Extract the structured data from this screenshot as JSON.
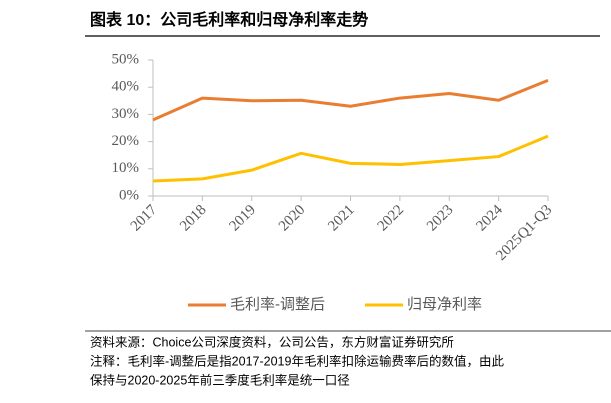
{
  "chart_data": {
    "type": "line",
    "title": "图表 10：公司毛利率和归母净利率走势",
    "categories": [
      "2017",
      "2018",
      "2019",
      "2020",
      "2021",
      "2022",
      "2023",
      "2024",
      "2025Q1-Q3"
    ],
    "series": [
      {
        "name": "毛利率-调整后",
        "color": "#E97D31",
        "values": [
          28,
          36,
          35,
          35.2,
          33,
          36,
          37.7,
          35.2,
          42.5
        ]
      },
      {
        "name": "归母净利率",
        "color": "#FFC000",
        "values": [
          5.5,
          6.3,
          9.5,
          15.7,
          12,
          11.6,
          13,
          14.5,
          22
        ]
      }
    ],
    "ylim": [
      0,
      50
    ],
    "yticks": [
      {
        "value": 0,
        "label": "0%"
      },
      {
        "value": 10,
        "label": "10%"
      },
      {
        "value": 20,
        "label": "20%"
      },
      {
        "value": 30,
        "label": "30%"
      },
      {
        "value": 40,
        "label": "40%"
      },
      {
        "value": 50,
        "label": "50%"
      }
    ],
    "grid": false,
    "notes": [
      "资料来源：Choice公司深度资料，公司公告，东方财富证券研究所",
      "注释：毛利率-调整后是指2017-2019年毛利率扣除运输费率后的数值，由此",
      "保持与2020-2025年前三季度毛利率是统一口径"
    ]
  }
}
